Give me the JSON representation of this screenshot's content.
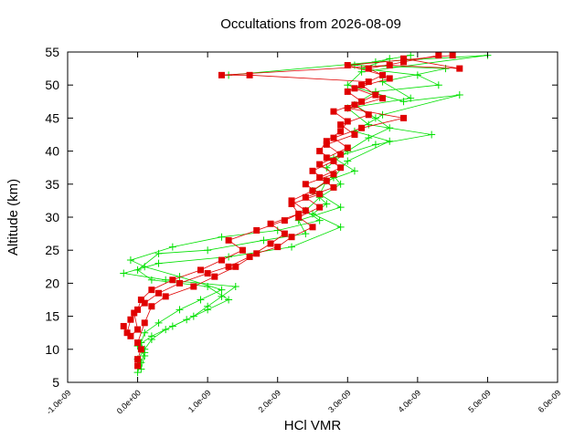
{
  "chart_data": {
    "type": "line",
    "title": "Occultations from 2026-08-09",
    "xlabel": "HCl VMR",
    "ylabel": "Altitude (km)",
    "xlim": [
      -1e-09,
      6e-09
    ],
    "ylim": [
      5,
      55
    ],
    "x_ticks": [
      {
        "value": -1e-09,
        "label": "-1.0e-09"
      },
      {
        "value": 0,
        "label": "0.0e+00"
      },
      {
        "value": 1e-09,
        "label": "1.0e-09"
      },
      {
        "value": 2e-09,
        "label": "2.0e-09"
      },
      {
        "value": 3e-09,
        "label": "3.0e-09"
      },
      {
        "value": 4e-09,
        "label": "4.0e-09"
      },
      {
        "value": 5e-09,
        "label": "5.0e-09"
      },
      {
        "value": 6e-09,
        "label": "6.0e-09"
      }
    ],
    "y_ticks": [
      {
        "value": 5,
        "label": "5"
      },
      {
        "value": 10,
        "label": "10"
      },
      {
        "value": 15,
        "label": "15"
      },
      {
        "value": 20,
        "label": "20"
      },
      {
        "value": 25,
        "label": "25"
      },
      {
        "value": 30,
        "label": "30"
      },
      {
        "value": 35,
        "label": "35"
      },
      {
        "value": 40,
        "label": "40"
      },
      {
        "value": 45,
        "label": "45"
      },
      {
        "value": 50,
        "label": "50"
      },
      {
        "value": 55,
        "label": "55"
      }
    ],
    "grid": false,
    "legend": "none",
    "series": [
      {
        "color": "#00e000",
        "marker": "plus",
        "points": [
          [
            0.0,
            6.5
          ],
          [
            5e-11,
            8.0
          ],
          [
            1e-10,
            9.5
          ],
          [
            5e-11,
            11.0
          ],
          [
            1e-10,
            12.5
          ],
          [
            3e-10,
            14.0
          ],
          [
            6e-10,
            16.0
          ],
          [
            9e-10,
            17.5
          ],
          [
            1.2e-09,
            19.0
          ],
          [
            6e-10,
            21.0
          ],
          [
            1e-10,
            22.5
          ],
          [
            -1e-10,
            23.5
          ],
          [
            5e-10,
            25.5
          ],
          [
            1.2e-09,
            27.0
          ],
          [
            2e-09,
            28.0
          ],
          [
            2.6e-09,
            29.5
          ],
          [
            2.4e-09,
            31.0
          ],
          [
            2.6e-09,
            33.0
          ],
          [
            2.9e-09,
            35.0
          ],
          [
            2.7e-09,
            37.5
          ],
          [
            3e-09,
            40.0
          ],
          [
            3.3e-09,
            42.0
          ],
          [
            3.6e-09,
            43.5
          ],
          [
            3.4e-09,
            45.0
          ],
          [
            3.1e-09,
            47.0
          ],
          [
            3.4e-09,
            49.0
          ],
          [
            4.3e-09,
            50.0
          ],
          [
            4e-09,
            51.5
          ],
          [
            3.2e-09,
            52.5
          ],
          [
            3.6e-09,
            54.0
          ]
        ]
      },
      {
        "color": "#00e000",
        "marker": "plus",
        "points": [
          [
            5e-11,
            7.0
          ],
          [
            1e-10,
            9.0
          ],
          [
            0.0,
            10.5
          ],
          [
            2e-10,
            12.0
          ],
          [
            5e-10,
            13.5
          ],
          [
            8e-10,
            15.0
          ],
          [
            1e-09,
            16.5
          ],
          [
            1.2e-09,
            18.0
          ],
          [
            1.4e-09,
            19.5
          ],
          [
            4e-10,
            20.5
          ],
          [
            -2e-10,
            21.5
          ],
          [
            3e-10,
            23.0
          ],
          [
            1.3e-09,
            24.0
          ],
          [
            2.2e-09,
            25.5
          ],
          [
            2.9e-09,
            28.5
          ],
          [
            2.5e-09,
            30.5
          ],
          [
            2.7e-09,
            32.0
          ],
          [
            2.5e-09,
            34.0
          ],
          [
            2.8e-09,
            36.0
          ],
          [
            3e-09,
            38.5
          ],
          [
            3.6e-09,
            41.5
          ],
          [
            3.1e-09,
            43.0
          ],
          [
            3.5e-09,
            45.5
          ],
          [
            4.6e-09,
            48.5
          ],
          [
            3.8e-09,
            47.5
          ],
          [
            3e-09,
            50.0
          ],
          [
            3.2e-09,
            52.0
          ],
          [
            5e-09,
            54.5
          ],
          [
            3.4e-09,
            53.5
          ],
          [
            1.3e-09,
            51.5
          ]
        ]
      },
      {
        "color": "#00e000",
        "marker": "plus",
        "points": [
          [
            0.0,
            8.5
          ],
          [
            1e-10,
            10.0
          ],
          [
            2e-10,
            11.5
          ],
          [
            4e-10,
            13.0
          ],
          [
            7e-10,
            14.5
          ],
          [
            1e-09,
            16.0
          ],
          [
            1.3e-09,
            17.5
          ],
          [
            1e-09,
            19.5
          ],
          [
            2e-10,
            20.5
          ],
          [
            0.0,
            22.0
          ],
          [
            3e-10,
            24.5
          ],
          [
            1e-09,
            25.0
          ],
          [
            1.8e-09,
            26.5
          ],
          [
            2.4e-09,
            27.5
          ],
          [
            2.3e-09,
            29.5
          ],
          [
            2.9e-09,
            31.5
          ],
          [
            2.6e-09,
            33.5
          ],
          [
            2.7e-09,
            35.5
          ],
          [
            3.1e-09,
            37.0
          ],
          [
            2.8e-09,
            39.0
          ],
          [
            3.4e-09,
            41.0
          ],
          [
            4.2e-09,
            42.5
          ],
          [
            3.3e-09,
            44.0
          ],
          [
            3e-09,
            46.5
          ],
          [
            3.9e-09,
            48.0
          ],
          [
            3.5e-09,
            50.5
          ],
          [
            4.4e-09,
            52.5
          ],
          [
            3.1e-09,
            53.0
          ],
          [
            3.9e-09,
            54.5
          ]
        ]
      },
      {
        "color": "#e00000",
        "marker": "square",
        "points": [
          [
            -2e-10,
            13.5
          ],
          [
            -1.5e-10,
            12.5
          ],
          [
            -1e-10,
            14.5
          ],
          [
            0.0,
            16.0
          ],
          [
            5e-11,
            17.5
          ],
          [
            2e-10,
            19.0
          ],
          [
            5e-10,
            20.5
          ],
          [
            9e-10,
            22.0
          ],
          [
            1.2e-09,
            23.5
          ],
          [
            1.5e-09,
            25.0
          ],
          [
            1.3e-09,
            26.5
          ],
          [
            1.7e-09,
            28.0
          ],
          [
            2.1e-09,
            29.5
          ],
          [
            2.4e-09,
            31.0
          ],
          [
            2.2e-09,
            32.5
          ],
          [
            2.5e-09,
            34.0
          ],
          [
            2.7e-09,
            35.5
          ],
          [
            2.5e-09,
            37.0
          ],
          [
            2.8e-09,
            38.5
          ],
          [
            2.6e-09,
            40.0
          ],
          [
            2.7e-09,
            41.5
          ],
          [
            2.9e-09,
            43.0
          ],
          [
            3e-09,
            44.5
          ],
          [
            2.8e-09,
            46.0
          ],
          [
            3.2e-09,
            47.5
          ],
          [
            3e-09,
            49.0
          ],
          [
            3.3e-09,
            50.5
          ],
          [
            1.6e-09,
            51.5
          ],
          [
            1.2e-09,
            51.5
          ],
          [
            3.6e-09,
            53.0
          ],
          [
            4.6e-09,
            52.5
          ],
          [
            3.8e-09,
            54.0
          ]
        ]
      },
      {
        "color": "#e00000",
        "marker": "square",
        "points": [
          [
            -1e-10,
            12.0
          ],
          [
            0.0,
            13.0
          ],
          [
            -5e-11,
            15.5
          ],
          [
            1e-10,
            17.0
          ],
          [
            3e-10,
            18.5
          ],
          [
            6e-10,
            20.0
          ],
          [
            1e-09,
            21.5
          ],
          [
            1.3e-09,
            22.5
          ],
          [
            1.6e-09,
            24.0
          ],
          [
            1.9e-09,
            26.0
          ],
          [
            2.1e-09,
            27.5
          ],
          [
            1.9e-09,
            29.0
          ],
          [
            2.3e-09,
            30.5
          ],
          [
            2.2e-09,
            32.0
          ],
          [
            2.6e-09,
            33.5
          ],
          [
            2.4e-09,
            35.0
          ],
          [
            2.8e-09,
            36.5
          ],
          [
            2.6e-09,
            38.0
          ],
          [
            2.9e-09,
            39.5
          ],
          [
            2.7e-09,
            41.0
          ],
          [
            3.1e-09,
            42.5
          ],
          [
            2.9e-09,
            44.0
          ],
          [
            3.3e-09,
            45.5
          ],
          [
            3.1e-09,
            47.0
          ],
          [
            3.4e-09,
            48.5
          ],
          [
            3.2e-09,
            50.0
          ],
          [
            3.5e-09,
            51.5
          ],
          [
            3e-09,
            53.0
          ],
          [
            4.5e-09,
            54.5
          ]
        ]
      },
      {
        "color": "#e00000",
        "marker": "square",
        "points": [
          [
            0.0,
            7.5
          ],
          [
            0.0,
            8.5
          ],
          [
            5e-11,
            10.0
          ],
          [
            0.0,
            11.0
          ],
          [
            1e-10,
            14.0
          ],
          [
            2e-10,
            16.5
          ],
          [
            4e-10,
            18.0
          ],
          [
            8e-10,
            19.5
          ],
          [
            1.1e-09,
            21.0
          ],
          [
            1.4e-09,
            22.5
          ],
          [
            1.7e-09,
            24.5
          ],
          [
            2e-09,
            25.5
          ],
          [
            2.2e-09,
            27.0
          ],
          [
            2.5e-09,
            28.5
          ],
          [
            2.3e-09,
            30.0
          ],
          [
            2.6e-09,
            31.5
          ],
          [
            2.4e-09,
            33.0
          ],
          [
            2.8e-09,
            34.5
          ],
          [
            2.6e-09,
            36.0
          ],
          [
            2.9e-09,
            37.5
          ],
          [
            2.7e-09,
            39.0
          ],
          [
            3e-09,
            40.5
          ],
          [
            2.8e-09,
            42.0
          ],
          [
            3.2e-09,
            43.5
          ],
          [
            3.8e-09,
            45.0
          ],
          [
            3e-09,
            46.5
          ],
          [
            3.5e-09,
            48.0
          ],
          [
            3.1e-09,
            49.5
          ],
          [
            3.6e-09,
            51.0
          ],
          [
            3.3e-09,
            52.5
          ],
          [
            3.8e-09,
            53.5
          ],
          [
            4.3e-09,
            54.5
          ]
        ]
      }
    ]
  }
}
